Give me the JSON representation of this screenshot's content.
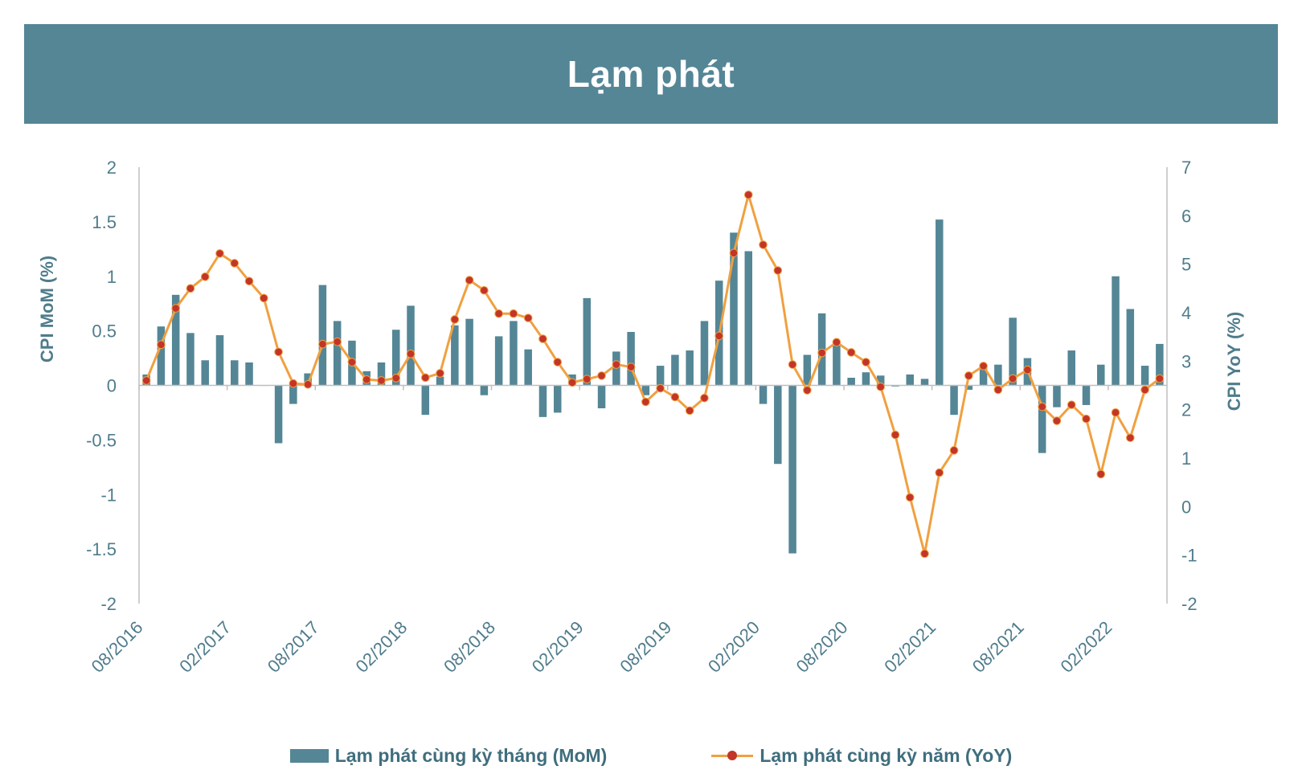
{
  "banner": {
    "title": "Lạm phát"
  },
  "chart_data": {
    "type": "bar+line",
    "title": "Lạm phát",
    "ylabel_left": "CPI MoM (%)",
    "ylabel_right": "CPI YoY (%)",
    "ylim_left": [
      -2,
      2
    ],
    "ylim_right": [
      -2,
      7
    ],
    "yticks_left": [
      "2",
      "1.5",
      "1",
      "0.5",
      "0",
      "-0.5",
      "-1",
      "-1.5",
      "-2"
    ],
    "yticks_right": [
      "7",
      "6",
      "5",
      "4",
      "3",
      "2",
      "1",
      "0",
      "-1",
      "-2"
    ],
    "x_tick_labels": [
      "08/2016",
      "02/2017",
      "08/2017",
      "02/2018",
      "08/2018",
      "02/2019",
      "08/2019",
      "02/2020",
      "08/2020",
      "02/2021",
      "08/2021",
      "02/2022"
    ],
    "categories": [
      "08/2016",
      "09/2016",
      "10/2016",
      "11/2016",
      "12/2016",
      "01/2017",
      "02/2017",
      "03/2017",
      "04/2017",
      "05/2017",
      "06/2017",
      "07/2017",
      "08/2017",
      "09/2017",
      "10/2017",
      "11/2017",
      "12/2017",
      "01/2018",
      "02/2018",
      "03/2018",
      "04/2018",
      "05/2018",
      "06/2018",
      "07/2018",
      "08/2018",
      "09/2018",
      "10/2018",
      "11/2018",
      "12/2018",
      "01/2019",
      "02/2019",
      "03/2019",
      "04/2019",
      "05/2019",
      "06/2019",
      "07/2019",
      "08/2019",
      "09/2019",
      "10/2019",
      "11/2019",
      "12/2019",
      "01/2020",
      "02/2020",
      "03/2020",
      "04/2020",
      "05/2020",
      "06/2020",
      "07/2020",
      "08/2020",
      "09/2020",
      "10/2020",
      "11/2020",
      "12/2020",
      "01/2021",
      "02/2021",
      "03/2021",
      "04/2021",
      "05/2021",
      "06/2021",
      "07/2021",
      "08/2021",
      "09/2021",
      "10/2021",
      "11/2021",
      "12/2021",
      "01/2022",
      "02/2022",
      "03/2022",
      "04/2022",
      "05/2022"
    ],
    "series": [
      {
        "name": "Lạm phát cùng kỳ tháng (MoM)",
        "type": "bar",
        "axis": "left",
        "color": "#548696",
        "values": [
          0.1,
          0.54,
          0.83,
          0.48,
          0.23,
          0.46,
          0.23,
          0.21,
          0,
          -0.53,
          -0.17,
          0.11,
          0.92,
          0.59,
          0.41,
          0.13,
          0.21,
          0.51,
          0.73,
          -0.27,
          0.08,
          0.55,
          0.61,
          -0.09,
          0.45,
          0.59,
          0.33,
          -0.29,
          -0.25,
          0.1,
          0.8,
          -0.21,
          0.31,
          0.49,
          -0.09,
          0.18,
          0.28,
          0.32,
          0.59,
          0.96,
          1.4,
          1.23,
          -0.17,
          -0.72,
          -1.54,
          0.28,
          0.66,
          0.4,
          0.07,
          0.12,
          0.09,
          -0.01,
          0.1,
          0.06,
          1.52,
          -0.27,
          -0.04,
          0.16,
          0.19,
          0.62,
          0.25,
          -0.62,
          -0.2,
          0.32,
          -0.18,
          0.19,
          1.0,
          0.7,
          0.18,
          0.38
        ]
      },
      {
        "name": "Lạm phát cùng kỳ năm (YoY)",
        "type": "line",
        "axis": "right",
        "color": "#f0a040",
        "marker_color": "#c33527",
        "values": [
          2.6,
          3.34,
          4.09,
          4.5,
          4.74,
          5.22,
          5.02,
          4.65,
          4.3,
          3.19,
          2.54,
          2.52,
          3.35,
          3.4,
          2.98,
          2.62,
          2.6,
          2.65,
          3.15,
          2.66,
          2.75,
          3.86,
          4.67,
          4.46,
          3.98,
          3.98,
          3.89,
          3.46,
          2.98,
          2.56,
          2.63,
          2.7,
          2.93,
          2.88,
          2.16,
          2.44,
          2.26,
          1.98,
          2.24,
          3.52,
          5.23,
          6.43,
          5.4,
          4.87,
          2.93,
          2.4,
          3.17,
          3.39,
          3.18,
          2.98,
          2.47,
          1.48,
          0.19,
          -0.97,
          0.7,
          1.16,
          2.7,
          2.9,
          2.41,
          2.64,
          2.82,
          2.06,
          1.77,
          2.1,
          1.81,
          0.67,
          1.94,
          1.42,
          2.41,
          2.64
        ]
      }
    ],
    "legend_position": "bottom-center"
  },
  "legend": {
    "mom_label": "Lạm phát cùng kỳ tháng (MoM)",
    "yoy_label": "Lạm phát cùng kỳ năm (YoY)"
  }
}
